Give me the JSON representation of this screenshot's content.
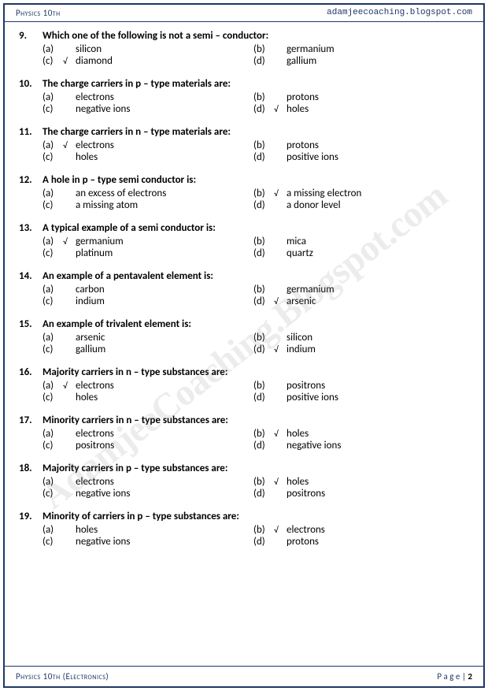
{
  "header": {
    "left": "Physics 10th",
    "right": "adamjeecoaching.blogspot.com"
  },
  "watermark": "AdamjeeCoaching.Blogspot.com",
  "footer": {
    "left": "Physics 10th (Electronics)",
    "right_label": "P a g e  | ",
    "page_num": "2"
  },
  "questions": [
    {
      "num": "9.",
      "text": "Which one of the following is not a semi – conductor:",
      "opts": [
        {
          "l": "(a)",
          "c": "",
          "t": "silicon"
        },
        {
          "l": "(b)",
          "c": "",
          "t": "germanium"
        },
        {
          "l": "(c)",
          "c": "√",
          "t": "diamond"
        },
        {
          "l": "(d)",
          "c": "",
          "t": "gallium"
        }
      ]
    },
    {
      "num": "10.",
      "text": "The charge carriers in p – type materials are:",
      "opts": [
        {
          "l": "(a)",
          "c": "",
          "t": "electrons"
        },
        {
          "l": "(b)",
          "c": "",
          "t": "protons"
        },
        {
          "l": "(c)",
          "c": "",
          "t": "negative ions"
        },
        {
          "l": "(d)",
          "c": "√",
          "t": "holes"
        }
      ]
    },
    {
      "num": "11.",
      "text": "The charge carriers in n – type materials are:",
      "opts": [
        {
          "l": "(a)",
          "c": "√",
          "t": "electrons"
        },
        {
          "l": "(b)",
          "c": "",
          "t": "protons"
        },
        {
          "l": "(c)",
          "c": "",
          "t": "holes"
        },
        {
          "l": "(d)",
          "c": "",
          "t": "positive ions"
        }
      ]
    },
    {
      "num": "12.",
      "text": "A hole in p – type semi conductor is:",
      "opts": [
        {
          "l": "(a)",
          "c": "",
          "t": "an excess of electrons"
        },
        {
          "l": "(b)",
          "c": "√",
          "t": "a missing electron"
        },
        {
          "l": "(c)",
          "c": "",
          "t": "a missing atom"
        },
        {
          "l": "(d)",
          "c": "",
          "t": "a donor level"
        }
      ]
    },
    {
      "num": "13.",
      "text": "A typical example of a semi conductor is:",
      "opts": [
        {
          "l": "(a)",
          "c": "√",
          "t": "germanium"
        },
        {
          "l": "(b)",
          "c": "",
          "t": "mica"
        },
        {
          "l": "(c)",
          "c": "",
          "t": "platinum"
        },
        {
          "l": "(d)",
          "c": "",
          "t": "quartz"
        }
      ]
    },
    {
      "num": "14.",
      "text": "An example of a pentavalent element is:",
      "opts": [
        {
          "l": "(a)",
          "c": "",
          "t": "carbon"
        },
        {
          "l": "(b)",
          "c": "",
          "t": "germanium"
        },
        {
          "l": "(c)",
          "c": "",
          "t": "indium"
        },
        {
          "l": "(d)",
          "c": "√",
          "t": "arsenic"
        }
      ]
    },
    {
      "num": "15.",
      "text": "An example of trivalent element is:",
      "opts": [
        {
          "l": "(a)",
          "c": "",
          "t": "arsenic"
        },
        {
          "l": "(b)",
          "c": "",
          "t": "silicon"
        },
        {
          "l": "(c)",
          "c": "",
          "t": "gallium"
        },
        {
          "l": "(d)",
          "c": "√",
          "t": "indium"
        }
      ]
    },
    {
      "num": "16.",
      "text": "Majority carriers in n – type substances are:",
      "opts": [
        {
          "l": "(a)",
          "c": "√",
          "t": "electrons"
        },
        {
          "l": "(b)",
          "c": "",
          "t": "positrons"
        },
        {
          "l": "(c)",
          "c": "",
          "t": "holes"
        },
        {
          "l": "(d)",
          "c": "",
          "t": "positive ions"
        }
      ]
    },
    {
      "num": "17.",
      "text": "Minority carriers in n – type substances are:",
      "opts": [
        {
          "l": "(a)",
          "c": "",
          "t": "electrons"
        },
        {
          "l": "(b)",
          "c": "√",
          "t": "holes"
        },
        {
          "l": "(c)",
          "c": "",
          "t": "positrons"
        },
        {
          "l": "(d)",
          "c": "",
          "t": "negative ions"
        }
      ]
    },
    {
      "num": "18.",
      "text": "Majority carriers in p – type substances are:",
      "opts": [
        {
          "l": "(a)",
          "c": "",
          "t": "electrons"
        },
        {
          "l": "(b)",
          "c": "√",
          "t": "holes"
        },
        {
          "l": "(c)",
          "c": "",
          "t": "negative ions"
        },
        {
          "l": "(d)",
          "c": "",
          "t": "positrons"
        }
      ]
    },
    {
      "num": "19.",
      "text": "Minority of carriers in p – type substances are:",
      "opts": [
        {
          "l": "(a)",
          "c": "",
          "t": "holes"
        },
        {
          "l": "(b)",
          "c": "√",
          "t": "electrons"
        },
        {
          "l": "(c)",
          "c": "",
          "t": "negative ions"
        },
        {
          "l": "(d)",
          "c": "",
          "t": "protons"
        }
      ]
    }
  ]
}
